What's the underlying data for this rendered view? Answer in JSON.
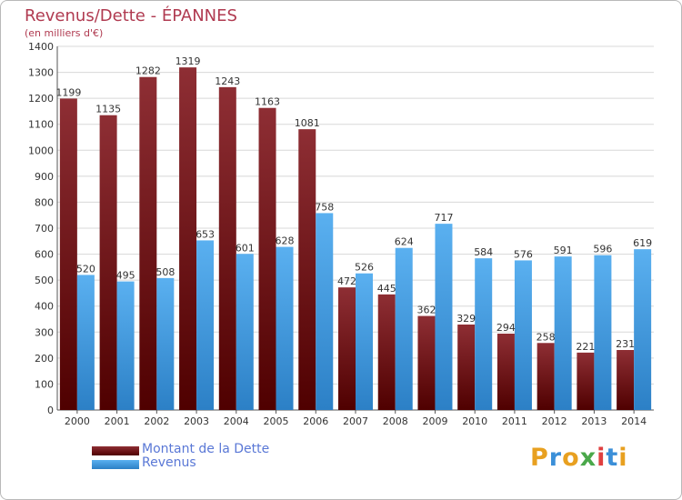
{
  "title": "Revenus/Dette - ÉPANNES",
  "subtitle": "(en milliers d'€)",
  "logo_text": "Proxiti",
  "colors": {
    "dette": "#8a1a1a",
    "revenus": "#3d9be0",
    "title": "#b03a50",
    "legend_text": "#5a78d6"
  },
  "chart_data": {
    "type": "bar",
    "categories": [
      "2000",
      "2001",
      "2002",
      "2003",
      "2004",
      "2005",
      "2006",
      "2007",
      "2008",
      "2009",
      "2010",
      "2011",
      "2012",
      "2013",
      "2014"
    ],
    "series": [
      {
        "name": "Montant de la Dette",
        "values": [
          1199,
          1135,
          1282,
          1319,
          1243,
          1163,
          1081,
          472,
          445,
          362,
          329,
          294,
          258,
          221,
          231
        ]
      },
      {
        "name": "Revenus",
        "values": [
          520,
          495,
          508,
          653,
          601,
          628,
          758,
          526,
          624,
          717,
          584,
          576,
          591,
          596,
          619
        ]
      }
    ],
    "title": "Revenus/Dette - ÉPANNES",
    "ylabel": "(en milliers d'€)",
    "ylim": [
      0,
      1400
    ],
    "yticks": [
      0,
      100,
      200,
      300,
      400,
      500,
      600,
      700,
      800,
      900,
      1000,
      1100,
      1200,
      1300,
      1400
    ],
    "grid": true,
    "legend_position": "bottom-left"
  }
}
